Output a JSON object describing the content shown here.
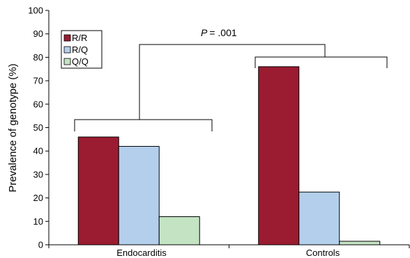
{
  "chart_data": {
    "type": "bar",
    "categories": [
      "Endocarditis",
      "Controls"
    ],
    "series": [
      {
        "name": "R/R",
        "color": "#9B1B30",
        "values": [
          46,
          76
        ]
      },
      {
        "name": "R/Q",
        "color": "#B3CFEC",
        "values": [
          42,
          22.5
        ]
      },
      {
        "name": "Q/Q",
        "color": "#C3E3C3",
        "values": [
          12,
          1.5
        ]
      }
    ],
    "ylabel": "Prevalence of genotype (%)",
    "xlabel": "",
    "ylim": [
      0,
      100
    ],
    "yticks": [
      0,
      10,
      20,
      30,
      40,
      50,
      60,
      70,
      80,
      90,
      100
    ],
    "grid": false,
    "legend_position": "top-left",
    "annotation": {
      "p_symbol": "P",
      "p_value": "= .001"
    }
  }
}
